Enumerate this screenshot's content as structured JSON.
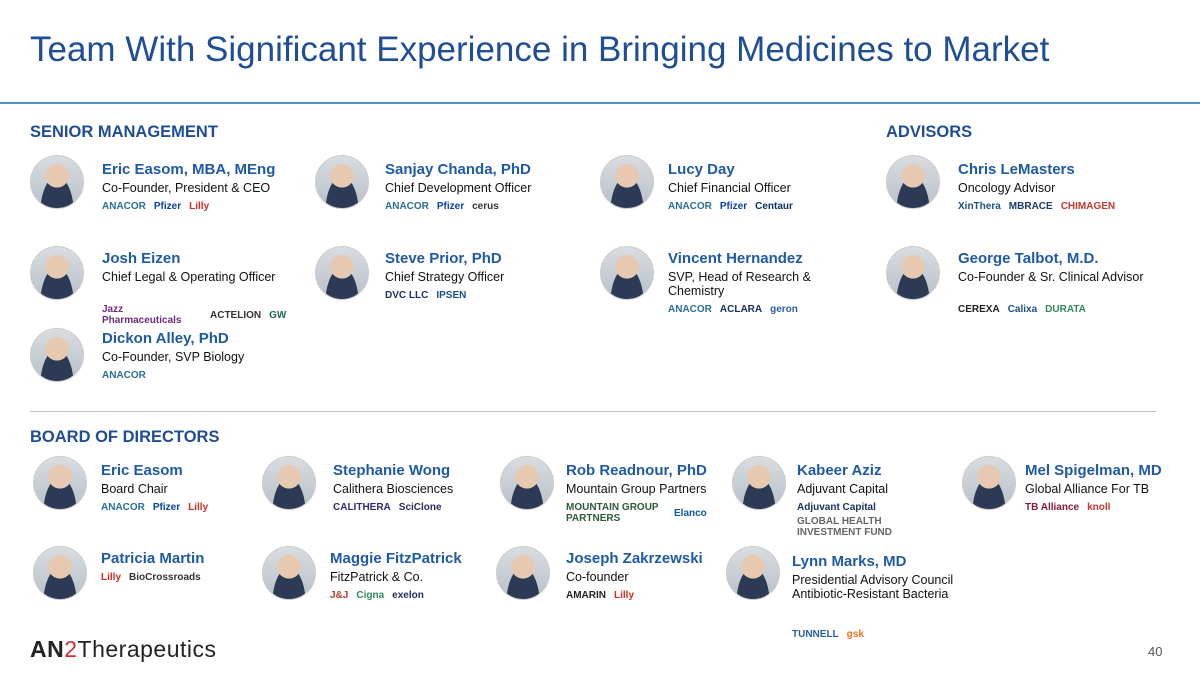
{
  "title": "Team With Significant Experience in Bringing Medicines to Market",
  "sections": {
    "senior": "SENIOR MANAGEMENT",
    "advisors": "ADVISORS",
    "board": "BOARD OF DIRECTORS"
  },
  "people": [
    {
      "name": "Eric Easom, MBA, MEng",
      "role": "Co-Founder, President & CEO",
      "logos": [
        {
          "text": "ANACOR",
          "color": "#2a6e9c"
        },
        {
          "text": "Pfizer",
          "color": "#0b3fa8"
        },
        {
          "text": "Lilly",
          "color": "#d52b1e"
        }
      ]
    },
    {
      "name": "Sanjay Chanda, PhD",
      "role": "Chief Development Officer",
      "logos": [
        {
          "text": "ANACOR",
          "color": "#2a6e9c"
        },
        {
          "text": "Pfizer",
          "color": "#0b3fa8"
        },
        {
          "text": "cerus",
          "color": "#333333"
        }
      ]
    },
    {
      "name": "Lucy Day",
      "role": "Chief Financial Officer",
      "logos": [
        {
          "text": "ANACOR",
          "color": "#2a6e9c"
        },
        {
          "text": "Pfizer",
          "color": "#0b3fa8"
        },
        {
          "text": "Centaur",
          "color": "#0b2d6b"
        }
      ]
    },
    {
      "name": "Chris LeMasters",
      "role": "Oncology Advisor",
      "logos": [
        {
          "text": "XinThera",
          "color": "#1b4f8a"
        },
        {
          "text": "MBRACE",
          "color": "#1b3a6b"
        },
        {
          "text": "CHIMAGEN",
          "color": "#c0392b"
        }
      ]
    },
    {
      "name": "Josh Eizen",
      "role": "Chief Legal & Operating Officer",
      "logos": [
        {
          "text": "Jazz Pharmaceuticals",
          "color": "#6a2c7a"
        },
        {
          "text": "ACTELION",
          "color": "#333333"
        },
        {
          "text": "GW",
          "color": "#1e6b4f"
        }
      ]
    },
    {
      "name": "Steve Prior, PhD",
      "role": "Chief Strategy Officer",
      "logos": [
        {
          "text": "DVC LLC",
          "color": "#1b2f5c"
        },
        {
          "text": "IPSEN",
          "color": "#1b4f8a"
        }
      ]
    },
    {
      "name": "Vincent Hernandez",
      "role": "SVP, Head of Research & Chemistry",
      "logos": [
        {
          "text": "ANACOR",
          "color": "#2a6e9c"
        },
        {
          "text": "ACLARA",
          "color": "#1b2f5c"
        },
        {
          "text": "geron",
          "color": "#2a5fa8"
        }
      ]
    },
    {
      "name": "George Talbot, M.D.",
      "role": "Co-Founder & Sr. Clinical Advisor",
      "logos": [
        {
          "text": "CEREXA",
          "color": "#222222"
        },
        {
          "text": "Calixa",
          "color": "#1b4f8a"
        },
        {
          "text": "DURATA",
          "color": "#2e8b57"
        }
      ]
    },
    {
      "name": "Dickon Alley, PhD",
      "role": "Co-Founder, SVP Biology",
      "logos": [
        {
          "text": "ANACOR",
          "color": "#2a6e9c"
        }
      ]
    }
  ],
  "board": [
    {
      "name": "Eric Easom",
      "role": "Board Chair",
      "logos": [
        {
          "text": "ANACOR",
          "color": "#2a6e9c"
        },
        {
          "text": "Pfizer",
          "color": "#0b3fa8"
        },
        {
          "text": "Lilly",
          "color": "#d52b1e"
        }
      ]
    },
    {
      "name": "Stephanie Wong",
      "role": "Calithera Biosciences",
      "logos": [
        {
          "text": "CALITHERA",
          "color": "#2c2c7a"
        },
        {
          "text": "SciClone",
          "color": "#2c2c5a"
        }
      ]
    },
    {
      "name": "Rob Readnour, PhD",
      "role": "Mountain Group Partners",
      "logos": [
        {
          "text": "MOUNTAIN GROUP PARTNERS",
          "color": "#2e5a3a"
        },
        {
          "text": "Elanco",
          "color": "#0b57a8"
        }
      ]
    },
    {
      "name": "Kabeer Aziz",
      "role": "Adjuvant Capital",
      "logos": [
        {
          "text": "Adjuvant Capital",
          "color": "#1b2f5c"
        },
        {
          "text": "GLOBAL HEALTH INVESTMENT FUND",
          "color": "#666666"
        }
      ]
    },
    {
      "name": "Mel Spigelman, MD",
      "role": "Global Alliance For TB",
      "logos": [
        {
          "text": "TB Alliance",
          "color": "#8b1a3a"
        },
        {
          "text": "knoll",
          "color": "#c0392b"
        }
      ]
    },
    {
      "name": "Patricia Martin",
      "role": "",
      "logos": [
        {
          "text": "Lilly",
          "color": "#d52b1e"
        },
        {
          "text": "BioCrossroads",
          "color": "#333333"
        }
      ]
    },
    {
      "name": "Maggie FitzPatrick",
      "role": "FitzPatrick & Co.",
      "logos": [
        {
          "text": "J&J",
          "color": "#c0392b"
        },
        {
          "text": "Cigna",
          "color": "#2e8b57"
        },
        {
          "text": "exelon",
          "color": "#1b2f5c"
        }
      ]
    },
    {
      "name": "Joseph Zakrzewski",
      "role": "Co-founder",
      "logos": [
        {
          "text": "AMARIN",
          "color": "#222222"
        },
        {
          "text": "Lilly",
          "color": "#d52b1e"
        }
      ]
    },
    {
      "name": "Lynn Marks, MD",
      "role": "Presidential Advisory Council Antibiotic-Resistant Bacteria",
      "logos": [
        {
          "text": "TUNNELL",
          "color": "#2a5fa8"
        },
        {
          "text": "gsk",
          "color": "#f36f21"
        }
      ]
    }
  ],
  "footer": {
    "brand_a": "AN",
    "brand_2": "2",
    "brand_b": "Therapeutics",
    "page": "40"
  }
}
